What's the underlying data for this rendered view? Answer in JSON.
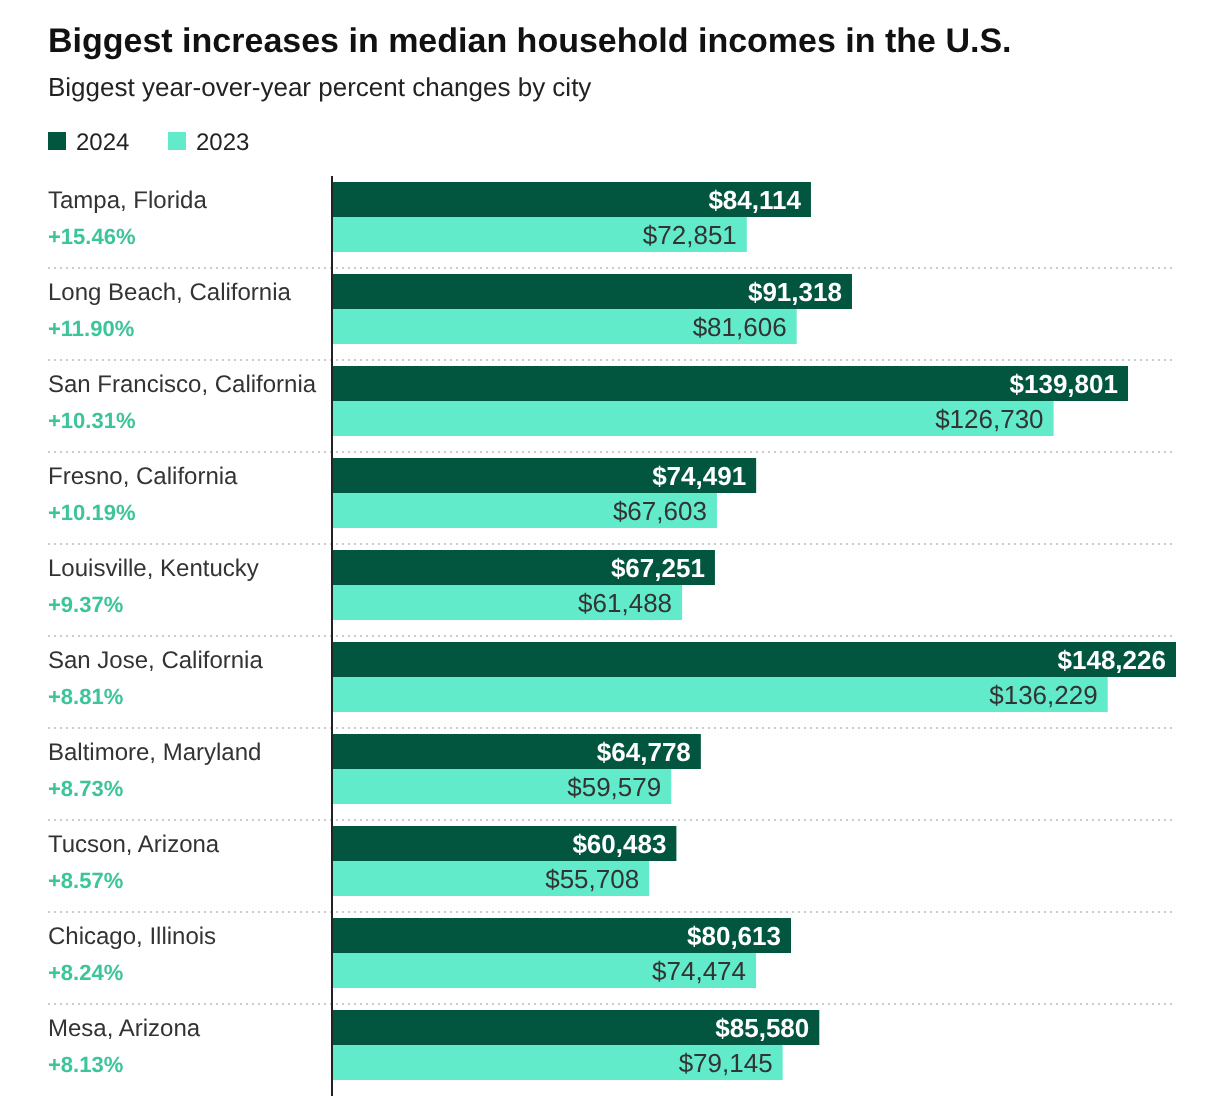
{
  "chart_data": {
    "type": "bar",
    "orientation": "horizontal",
    "title": "Biggest increases in median household incomes in the U.S.",
    "subtitle": "Biggest year-over-year percent changes by city",
    "legend": "top left",
    "categories": [
      "Tampa, Florida",
      "Long Beach, California",
      "San Francisco, California",
      "Fresno, California",
      "Louisville, Kentucky",
      "San Jose, California",
      "Baltimore, Maryland",
      "Tucson, Arizona",
      "Chicago, Illinois",
      "Mesa, Arizona"
    ],
    "annotations": [
      "+15.46%",
      "+11.90%",
      "+10.31%",
      "+10.19%",
      "+9.37%",
      "+8.81%",
      "+8.73%",
      "+8.57%",
      "+8.24%",
      "+8.13%"
    ],
    "series": [
      {
        "name": "2024",
        "color": "#02553f",
        "values": [
          84114,
          91318,
          139801,
          74491,
          67251,
          148226,
          64778,
          60483,
          80613,
          85580
        ],
        "value_labels": [
          "$84,114",
          "$91,318",
          "$139,801",
          "$74,491",
          "$67,251",
          "$148,226",
          "$64,778",
          "$60,483",
          "$80,613",
          "$85,580"
        ]
      },
      {
        "name": "2023",
        "color": "#62ebca",
        "values": [
          72851,
          81606,
          126730,
          67603,
          61488,
          136229,
          59579,
          55708,
          74474,
          79145
        ],
        "value_labels": [
          "$72,851",
          "$81,606",
          "$126,730",
          "$67,603",
          "$61,488",
          "$136,229",
          "$59,579",
          "$55,708",
          "$74,474",
          "$79,145"
        ]
      }
    ]
  }
}
